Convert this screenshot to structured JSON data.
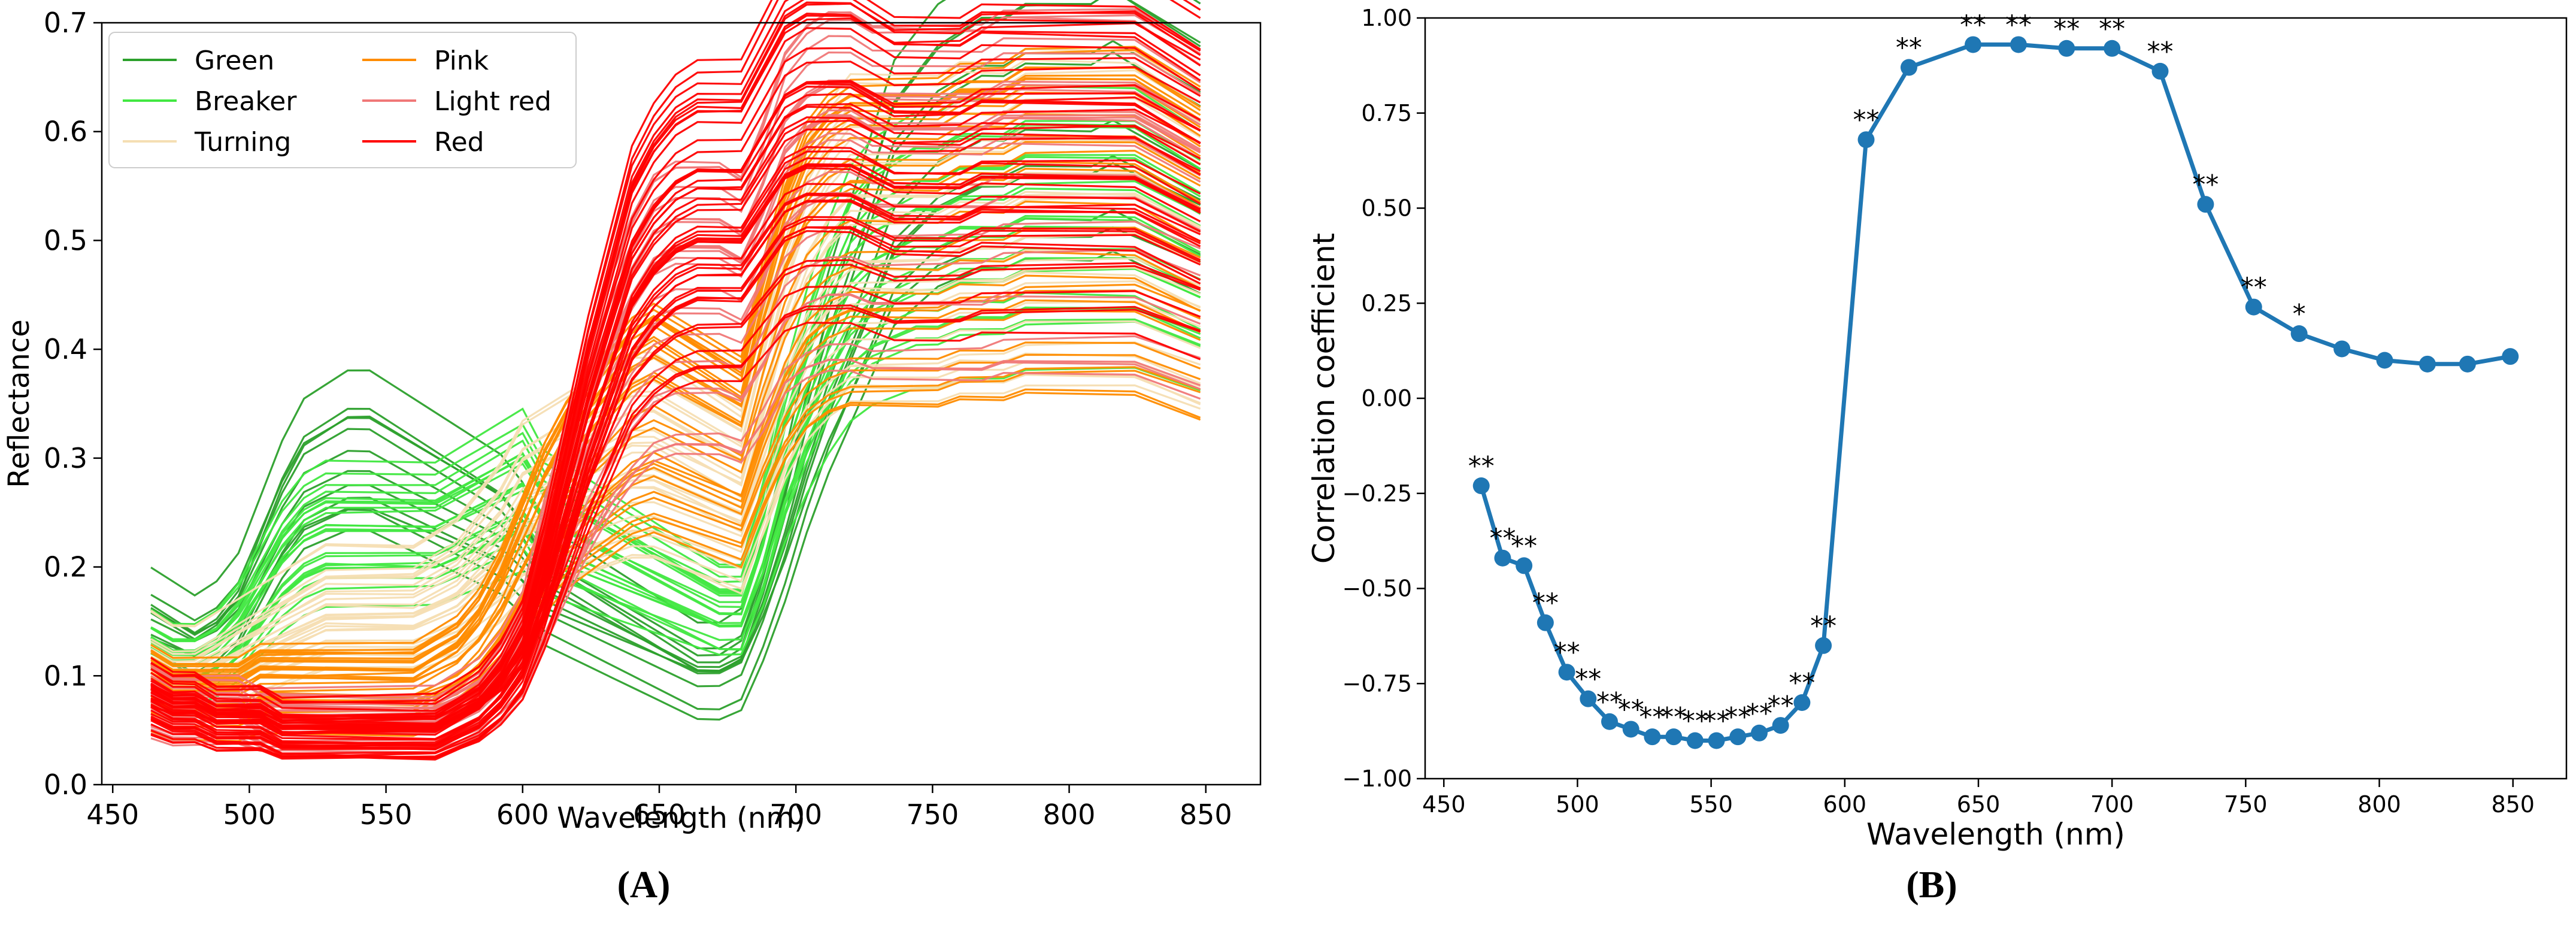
{
  "chart_data": [
    {
      "panel": "A",
      "type": "line",
      "title": "",
      "xlabel": "Wavelength (nm)",
      "ylabel": "Reflectance",
      "xlim": [
        446,
        870
      ],
      "ylim": [
        0.0,
        0.7
      ],
      "xticks": [
        450,
        500,
        550,
        600,
        650,
        700,
        750,
        800,
        850
      ],
      "yticks": [
        0.0,
        0.1,
        0.2,
        0.3,
        0.4,
        0.5,
        0.6,
        0.7
      ],
      "grid": false,
      "legend_position": "top-left",
      "x": [
        464,
        472,
        480,
        488,
        496,
        504,
        512,
        520,
        528,
        536,
        544,
        552,
        560,
        568,
        576,
        584,
        592,
        600,
        608,
        616,
        624,
        632,
        640,
        648,
        656,
        664,
        672,
        680,
        688,
        696,
        704,
        712,
        720,
        728,
        736,
        744,
        752,
        760,
        768,
        776,
        784,
        792,
        800,
        808,
        816,
        824,
        832,
        840,
        848
      ],
      "groups": [
        {
          "name": "Green",
          "color": "#2ca02c",
          "count": 12,
          "representative": [
            0.14,
            0.13,
            0.12,
            0.13,
            0.15,
            0.19,
            0.23,
            0.26,
            0.27,
            0.28,
            0.28,
            0.27,
            0.26,
            0.25,
            0.24,
            0.23,
            0.22,
            0.2,
            0.17,
            0.16,
            0.15,
            0.14,
            0.13,
            0.12,
            0.11,
            0.1,
            0.1,
            0.11,
            0.16,
            0.22,
            0.29,
            0.35,
            0.4,
            0.45,
            0.5,
            0.52,
            0.54,
            0.55,
            0.56,
            0.56,
            0.57,
            0.57,
            0.57,
            0.57,
            0.58,
            0.57,
            0.56,
            0.55,
            0.54
          ]
        },
        {
          "name": "Breaker",
          "color": "#41e841",
          "count": 22,
          "representative": [
            0.12,
            0.11,
            0.11,
            0.12,
            0.14,
            0.17,
            0.2,
            0.22,
            0.23,
            0.23,
            0.23,
            0.23,
            0.23,
            0.23,
            0.24,
            0.25,
            0.26,
            0.27,
            0.24,
            0.23,
            0.22,
            0.21,
            0.2,
            0.19,
            0.18,
            0.17,
            0.16,
            0.16,
            0.22,
            0.3,
            0.36,
            0.41,
            0.45,
            0.47,
            0.48,
            0.49,
            0.49,
            0.5,
            0.5,
            0.5,
            0.51,
            0.51,
            0.51,
            0.51,
            0.51,
            0.51,
            0.5,
            0.49,
            0.48
          ]
        },
        {
          "name": "Turning",
          "color": "#f5deb3",
          "count": 28,
          "representative": [
            0.11,
            0.1,
            0.1,
            0.11,
            0.12,
            0.13,
            0.14,
            0.15,
            0.16,
            0.16,
            0.16,
            0.16,
            0.16,
            0.17,
            0.18,
            0.2,
            0.22,
            0.25,
            0.26,
            0.27,
            0.28,
            0.29,
            0.3,
            0.3,
            0.29,
            0.28,
            0.27,
            0.26,
            0.33,
            0.4,
            0.45,
            0.48,
            0.5,
            0.5,
            0.5,
            0.5,
            0.5,
            0.51,
            0.51,
            0.51,
            0.52,
            0.52,
            0.52,
            0.52,
            0.52,
            0.52,
            0.51,
            0.5,
            0.49
          ]
        },
        {
          "name": "Pink",
          "color": "#ff8c00",
          "count": 30,
          "representative": [
            0.09,
            0.08,
            0.08,
            0.08,
            0.08,
            0.09,
            0.09,
            0.09,
            0.09,
            0.09,
            0.09,
            0.09,
            0.09,
            0.1,
            0.11,
            0.13,
            0.16,
            0.2,
            0.24,
            0.27,
            0.29,
            0.31,
            0.33,
            0.34,
            0.33,
            0.32,
            0.31,
            0.3,
            0.37,
            0.43,
            0.47,
            0.49,
            0.5,
            0.5,
            0.5,
            0.5,
            0.5,
            0.51,
            0.51,
            0.51,
            0.52,
            0.52,
            0.52,
            0.52,
            0.52,
            0.52,
            0.51,
            0.5,
            0.49
          ]
        },
        {
          "name": "Light red",
          "color": "#f07878",
          "count": 25,
          "representative": [
            0.08,
            0.07,
            0.07,
            0.07,
            0.07,
            0.06,
            0.06,
            0.06,
            0.06,
            0.06,
            0.06,
            0.06,
            0.06,
            0.06,
            0.07,
            0.08,
            0.1,
            0.13,
            0.2,
            0.26,
            0.32,
            0.37,
            0.41,
            0.44,
            0.45,
            0.45,
            0.45,
            0.44,
            0.48,
            0.53,
            0.55,
            0.56,
            0.56,
            0.55,
            0.55,
            0.55,
            0.55,
            0.55,
            0.55,
            0.56,
            0.56,
            0.56,
            0.56,
            0.56,
            0.56,
            0.56,
            0.55,
            0.54,
            0.53
          ]
        },
        {
          "name": "Red",
          "color": "#ff0000",
          "count": 45,
          "representative": [
            0.08,
            0.07,
            0.07,
            0.06,
            0.06,
            0.06,
            0.05,
            0.05,
            0.05,
            0.05,
            0.05,
            0.05,
            0.05,
            0.05,
            0.06,
            0.07,
            0.09,
            0.12,
            0.18,
            0.25,
            0.32,
            0.38,
            0.44,
            0.47,
            0.49,
            0.5,
            0.5,
            0.5,
            0.53,
            0.56,
            0.57,
            0.57,
            0.57,
            0.56,
            0.55,
            0.55,
            0.55,
            0.55,
            0.56,
            0.56,
            0.56,
            0.56,
            0.56,
            0.56,
            0.56,
            0.56,
            0.55,
            0.54,
            0.53
          ]
        }
      ]
    },
    {
      "panel": "B",
      "type": "line",
      "title": "",
      "xlabel": "Wavelength (nm)",
      "ylabel": "Correlation coefficient",
      "xlim": [
        443,
        870
      ],
      "ylim": [
        -1.0,
        1.0
      ],
      "xticks": [
        450,
        500,
        550,
        600,
        650,
        700,
        750,
        800,
        850
      ],
      "yticks": [
        -1.0,
        -0.75,
        -0.5,
        -0.25,
        0.0,
        0.25,
        0.5,
        0.75,
        1.0
      ],
      "ytick_labels": [
        "−1.00",
        "−0.75",
        "−0.50",
        "−0.25",
        "0.00",
        "0.25",
        "0.50",
        "0.75",
        "1.00"
      ],
      "grid": false,
      "color": "#1f77b4",
      "x": [
        464,
        472,
        480,
        488,
        496,
        504,
        512,
        520,
        528,
        536,
        544,
        552,
        560,
        568,
        576,
        584,
        592,
        608,
        624,
        648,
        665,
        683,
        700,
        718,
        735,
        753,
        770,
        786,
        802,
        818,
        833,
        849
      ],
      "values": [
        -0.23,
        -0.42,
        -0.44,
        -0.59,
        -0.72,
        -0.79,
        -0.85,
        -0.87,
        -0.89,
        -0.89,
        -0.9,
        -0.9,
        -0.89,
        -0.88,
        -0.86,
        -0.8,
        -0.65,
        0.68,
        0.87,
        0.93,
        0.93,
        0.92,
        0.92,
        0.86,
        0.51,
        0.24,
        0.17,
        0.13,
        0.1,
        0.09,
        0.09,
        0.11
      ],
      "significance": [
        "**",
        "**",
        "**",
        "**",
        "**",
        "**",
        "**",
        "**",
        "**",
        "**",
        "**",
        "**",
        "**",
        "**",
        "**",
        "**",
        "**",
        "**",
        "**",
        "**",
        "**",
        "**",
        "**",
        "**",
        "**",
        "**",
        "*",
        "",
        "",
        "",
        "",
        ""
      ]
    }
  ],
  "panel_labels": {
    "a": "(A)",
    "b": "(B)"
  }
}
